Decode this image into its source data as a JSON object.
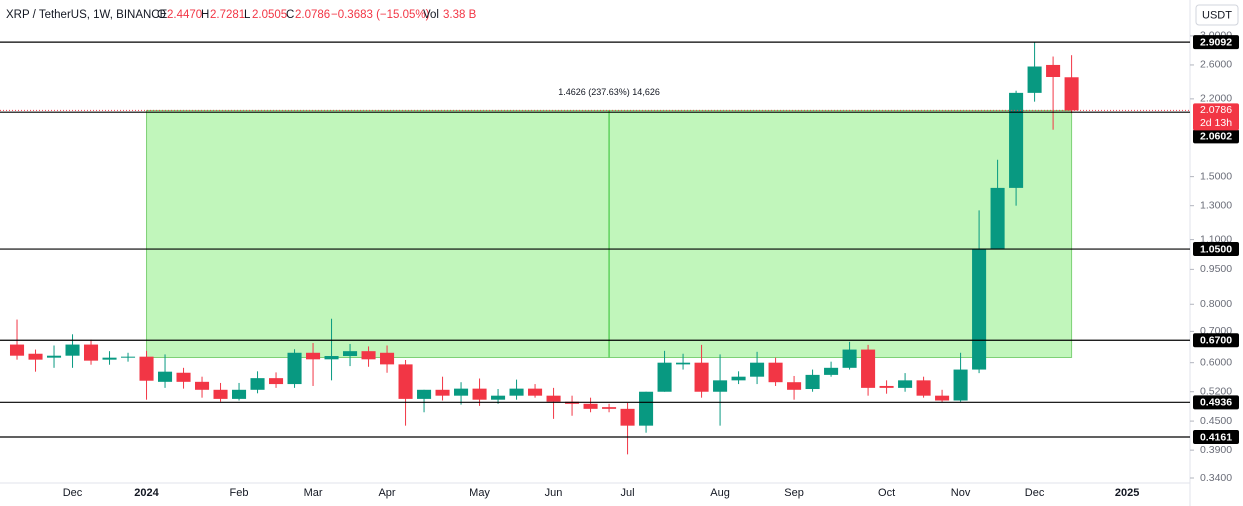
{
  "chart_data": {
    "type": "candlestick",
    "header": {
      "symbol": "XRP / TetherUS, 1W, BINANCE",
      "o": "O",
      "open": "2.4470",
      "h": "H",
      "high": "2.7281",
      "l": "L",
      "low": "2.0505",
      "c": "C",
      "close": "2.0786",
      "change": "−0.3683 (−15.05%)",
      "vol": "Vol",
      "volume": "3.38 B"
    },
    "currency": "USDT",
    "categories": [
      null,
      null,
      null,
      "Dec",
      null,
      null,
      null,
      "2024",
      null,
      null,
      null,
      null,
      "Feb",
      null,
      null,
      null,
      "Mar",
      null,
      null,
      null,
      "Apr",
      null,
      null,
      null,
      null,
      "May",
      null,
      null,
      null,
      "Jun",
      null,
      null,
      null,
      "Jul",
      null,
      null,
      null,
      null,
      "Aug",
      null,
      null,
      null,
      "Sep",
      null,
      null,
      null,
      null,
      "Oct",
      null,
      null,
      null,
      "Nov",
      null,
      null,
      null,
      "Dec",
      null,
      null,
      null,
      null,
      "2025"
    ],
    "open": [
      0.656,
      0.627,
      0.615,
      0.621,
      0.656,
      0.609,
      0.615,
      0.618,
      0.546,
      0.571,
      0.546,
      0.525,
      0.502,
      0.525,
      0.556,
      0.54,
      0.63,
      0.61,
      0.62,
      0.635,
      0.63,
      0.595,
      0.502,
      0.525,
      0.51,
      0.528,
      0.5,
      0.51,
      0.528,
      0.51,
      0.495,
      0.49,
      0.482,
      0.478,
      0.44,
      0.52,
      0.595,
      0.6,
      0.52,
      0.55,
      0.56,
      0.6,
      0.545,
      0.527,
      0.565,
      0.585,
      0.64,
      0.535,
      0.53,
      0.55,
      0.51,
      0.498,
      0.58,
      1.05,
      1.419,
      2.266,
      2.6,
      2.447,
      null,
      null,
      null
    ],
    "high": [
      0.742,
      0.64,
      0.653,
      0.69,
      0.672,
      0.635,
      0.63,
      0.636,
      0.625,
      0.585,
      0.56,
      0.543,
      0.543,
      0.575,
      0.572,
      0.641,
      0.661,
      0.745,
      0.658,
      0.65,
      0.653,
      0.608,
      0.525,
      0.56,
      0.545,
      0.555,
      0.527,
      0.552,
      0.54,
      0.53,
      0.51,
      0.505,
      0.49,
      0.492,
      0.52,
      0.636,
      0.627,
      0.655,
      0.625,
      0.575,
      0.633,
      0.615,
      0.562,
      0.58,
      0.603,
      0.665,
      0.655,
      0.55,
      0.57,
      0.56,
      0.525,
      0.63,
      1.27,
      1.63,
      2.29,
      2.91,
      2.71,
      2.7281,
      null,
      null,
      null
    ],
    "low": [
      0.609,
      0.574,
      0.585,
      0.585,
      0.594,
      0.594,
      0.603,
      0.5,
      0.53,
      0.528,
      0.505,
      0.495,
      0.498,
      0.516,
      0.53,
      0.53,
      0.535,
      0.55,
      0.59,
      0.588,
      0.571,
      0.44,
      0.47,
      0.498,
      0.488,
      0.485,
      0.49,
      0.5,
      0.505,
      0.455,
      0.462,
      0.47,
      0.47,
      0.382,
      0.425,
      0.52,
      0.58,
      0.505,
      0.44,
      0.54,
      0.54,
      0.535,
      0.5,
      0.52,
      0.56,
      0.58,
      0.51,
      0.515,
      0.52,
      0.505,
      0.493,
      0.495,
      0.57,
      1.05,
      1.3,
      2.17,
      1.89,
      2.0505,
      null,
      null,
      null
    ],
    "close": [
      0.621,
      0.609,
      0.621,
      0.656,
      0.606,
      0.615,
      0.618,
      0.549,
      0.574,
      0.546,
      0.525,
      0.502,
      0.525,
      0.556,
      0.54,
      0.63,
      0.61,
      0.62,
      0.635,
      0.61,
      0.595,
      0.502,
      0.525,
      0.51,
      0.528,
      0.5,
      0.51,
      0.528,
      0.51,
      0.495,
      0.49,
      0.478,
      0.478,
      0.44,
      0.52,
      0.6,
      0.6,
      0.52,
      0.55,
      0.56,
      0.6,
      0.545,
      0.525,
      0.565,
      0.585,
      0.64,
      0.53,
      0.53,
      0.55,
      0.51,
      0.498,
      0.58,
      1.05,
      1.419,
      2.266,
      2.58,
      2.45,
      2.0786,
      null,
      null,
      null
    ],
    "up_color": "#089981",
    "down_color": "#f23645",
    "xlim": [
      -0.92,
      63.4
    ],
    "ylim": [
      0.3205,
      3.58
    ],
    "log_scale": true,
    "yticks": [
      {
        "value": 0.34,
        "label": "0.3400"
      },
      {
        "value": 0.39,
        "label": "0.3900"
      },
      {
        "value": 0.45,
        "label": "0.4500"
      },
      {
        "value": 0.52,
        "label": "0.5200"
      },
      {
        "value": 0.6,
        "label": "0.6000"
      },
      {
        "value": 0.7,
        "label": "0.7000"
      },
      {
        "value": 0.8,
        "label": "0.8000"
      },
      {
        "value": 0.95,
        "label": "0.9500"
      },
      {
        "value": 1.1,
        "label": "1.1000"
      },
      {
        "value": 1.3,
        "label": "1.3000"
      },
      {
        "value": 1.5,
        "label": "1.5000"
      },
      {
        "value": 2.2,
        "label": "2.2000"
      },
      {
        "value": 2.6,
        "label": "2.6000"
      },
      {
        "value": 3,
        "label": "3.0000"
      }
    ],
    "levels": [
      {
        "value": 2.9092,
        "label": "2.9092"
      },
      {
        "value": 2.0602,
        "label": "2.0602"
      },
      {
        "value": 1.05,
        "label": "1.0500"
      },
      {
        "value": 0.67,
        "label": "0.6700"
      },
      {
        "value": 0.4936,
        "label": "0.4936"
      },
      {
        "value": 0.4161,
        "label": "0.4161"
      }
    ],
    "last_price": {
      "value": 2.0786,
      "label": "2.0786",
      "countdown": "2d 13h"
    },
    "measure": {
      "from_index": 7,
      "to_index": 57,
      "bottom": 0.6155,
      "top": 2.0781,
      "label": "1.4626 (237.63%) 14,626"
    }
  }
}
